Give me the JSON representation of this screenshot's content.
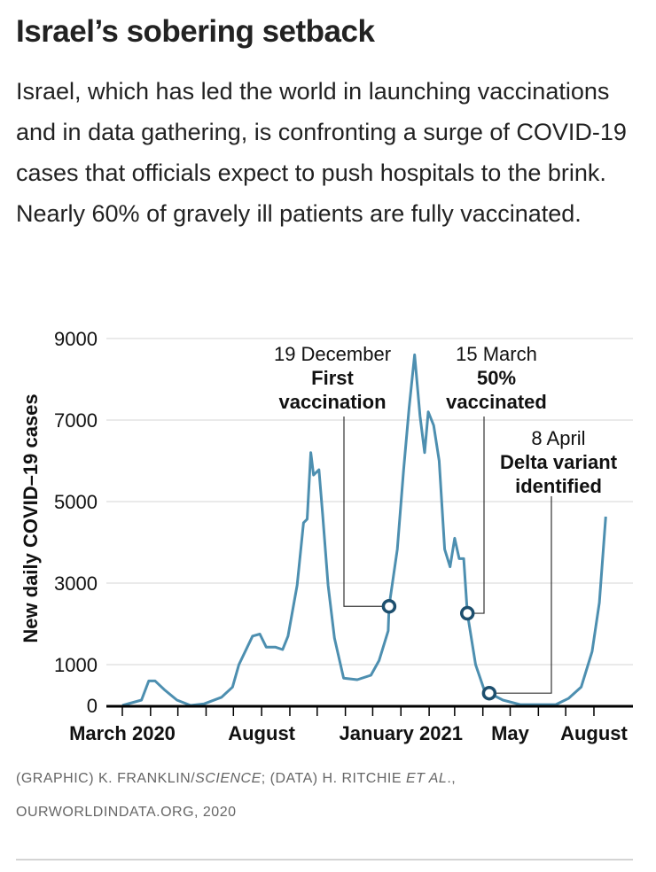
{
  "title": "Israel’s sobering setback",
  "description": "Israel, which has led the world in launching vaccinations and in data gathering, is confronting a surge of COVID-19 cases that officials expect to push hospitals to the brink. Nearly 60% of gravely ill patients are fully vaccinated.",
  "credits": {
    "line1_a": "(GRAPHIC) K. FRANKLIN/",
    "line1_b": "SCIENCE",
    "line1_c": "; (DATA) H. RITCHIE ",
    "line1_d": "ET AL",
    "line1_e": ".,",
    "line2": "OURWORLDINDATA.ORG, 2020"
  },
  "chart_data": {
    "type": "line",
    "ylabel": "New daily COVID–19 cases",
    "xlabel": "",
    "x_unit": "days since 1 March 2020",
    "ylim": [
      0,
      9000
    ],
    "yticks": [
      0,
      1000,
      3000,
      5000,
      7000,
      9000
    ],
    "xlim": [
      0,
      560
    ],
    "x_tick_days": [
      0,
      31,
      61,
      92,
      122,
      153,
      184,
      214,
      245,
      275,
      306,
      337,
      365,
      396,
      426,
      457,
      487,
      518
    ],
    "x_tick_labels": [
      {
        "day": 0,
        "label": "March 2020"
      },
      {
        "day": 153,
        "label": "August"
      },
      {
        "day": 306,
        "label": "January 2021"
      },
      {
        "day": 426,
        "label": "May"
      },
      {
        "day": 518,
        "label": "August"
      }
    ],
    "grid": true,
    "color": "#4d8fb0",
    "marker_color": "#1d4f6e",
    "series": [
      {
        "name": "New daily cases",
        "x": [
          0,
          21,
          29,
          36,
          46,
          60,
          75,
          90,
          109,
          121,
          128,
          143,
          151,
          158,
          168,
          176,
          182,
          192,
          199,
          203,
          207,
          210,
          216,
          220,
          226,
          233,
          243,
          258,
          273,
          282,
          292,
          293,
          302,
          309,
          315,
          321,
          327,
          332,
          336,
          342,
          348,
          354,
          360,
          365,
          370,
          375,
          379,
          388,
          398,
          403,
          418,
          437,
          476,
          490,
          504,
          516,
          524,
          531
        ],
        "y": [
          0,
          130,
          600,
          600,
          390,
          130,
          0,
          40,
          200,
          450,
          1000,
          1700,
          1750,
          1430,
          1430,
          1370,
          1700,
          2950,
          4480,
          4570,
          6200,
          5650,
          5780,
          4700,
          2950,
          1650,
          670,
          630,
          740,
          1100,
          1830,
          2430,
          3830,
          5780,
          7300,
          8600,
          7100,
          6200,
          7200,
          6870,
          6000,
          3830,
          3400,
          4100,
          3600,
          3600,
          2260,
          1000,
          350,
          300,
          130,
          20,
          20,
          170,
          450,
          1320,
          2520,
          4630
        ]
      }
    ],
    "annotations": [
      {
        "day": 293,
        "value": 2430,
        "date": "19 December",
        "text": [
          "First",
          "vaccination"
        ]
      },
      {
        "day": 379,
        "value": 2260,
        "date": "15 March",
        "text": [
          "50%",
          "vaccinated"
        ]
      },
      {
        "day": 403,
        "value": 300,
        "date": "8 April",
        "text": [
          "Delta variant",
          "identified"
        ]
      }
    ]
  }
}
